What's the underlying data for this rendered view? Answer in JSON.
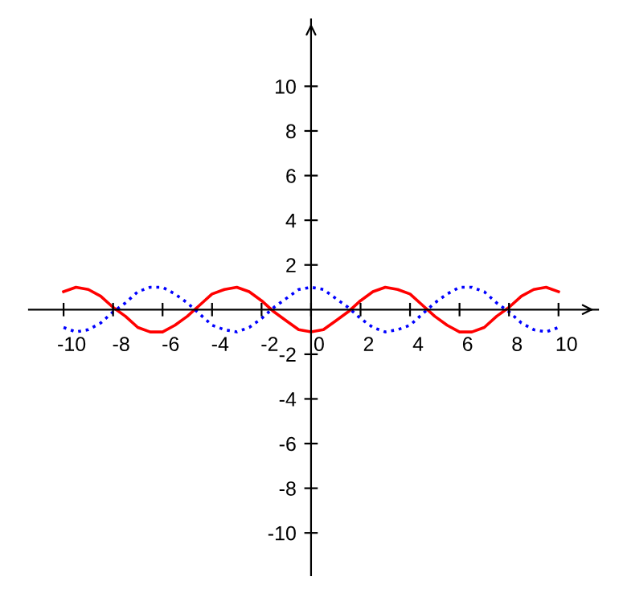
{
  "chart_data": {
    "type": "line",
    "x": [
      -10,
      -9.5,
      -9,
      -8.5,
      -8,
      -7.5,
      -7,
      -6.5,
      -6,
      -5.5,
      -5,
      -4.5,
      -4,
      -3.5,
      -3,
      -2.5,
      -2,
      -1.5,
      -1,
      -0.5,
      0,
      0.5,
      1,
      1.5,
      2,
      2.5,
      3,
      3.5,
      4,
      4.5,
      5,
      5.5,
      6,
      6.5,
      7,
      7.5,
      8,
      8.5,
      9,
      9.5,
      10
    ],
    "series": [
      {
        "color": "#ff0000",
        "line_style": "solid",
        "values": [
          0.8,
          1.0,
          0.9,
          0.6,
          0.1,
          -0.3,
          -0.8,
          -1.0,
          -1.0,
          -0.7,
          -0.3,
          0.2,
          0.7,
          0.9,
          1.0,
          0.8,
          0.4,
          -0.1,
          -0.5,
          -0.9,
          -1.0,
          -0.9,
          -0.5,
          -0.1,
          0.4,
          0.8,
          1.0,
          0.9,
          0.7,
          0.2,
          -0.3,
          -0.7,
          -1.0,
          -1.0,
          -0.8,
          -0.3,
          0.1,
          0.6,
          0.9,
          1.0,
          0.8
        ]
      },
      {
        "color": "#0000ff",
        "line_style": "dotted",
        "values": [
          -0.8,
          -1.0,
          -0.9,
          -0.6,
          -0.1,
          0.3,
          0.8,
          1.0,
          1.0,
          0.7,
          0.3,
          -0.2,
          -0.7,
          -0.9,
          -1.0,
          -0.8,
          -0.4,
          0.1,
          0.5,
          0.9,
          1.0,
          0.9,
          0.5,
          0.1,
          -0.4,
          -0.8,
          -1.0,
          -0.9,
          -0.7,
          -0.2,
          0.3,
          0.7,
          1.0,
          1.0,
          0.8,
          0.3,
          -0.1,
          -0.6,
          -0.9,
          -1.0,
          -0.8
        ]
      }
    ],
    "xlim": [
      -11.4,
      11.6
    ],
    "ylim": [
      -11.9,
      13
    ],
    "xticks": [
      -10,
      -8,
      -6,
      -4,
      -2,
      0,
      2,
      4,
      6,
      8,
      10
    ],
    "yticks": [
      -10,
      -8,
      -6,
      -4,
      -2,
      2,
      4,
      6,
      8,
      10
    ],
    "grid": false,
    "marker": "none"
  }
}
